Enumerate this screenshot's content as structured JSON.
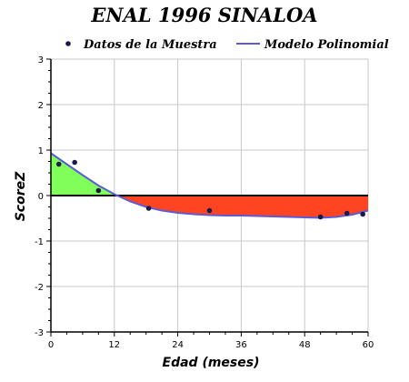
{
  "chart_data": {
    "type": "line",
    "title": "ENAL 1996 SINALOA",
    "xlabel": "Edad (meses)",
    "ylabel": "ScoreZ",
    "xlim": [
      0,
      60
    ],
    "ylim": [
      -3,
      3
    ],
    "x_ticks": [
      "0",
      "12",
      "24",
      "36",
      "48",
      "60"
    ],
    "y_ticks": [
      "3",
      "2",
      "1",
      "0",
      "-1",
      "-2",
      "-3"
    ],
    "grid": true,
    "legend": [
      "Datos de la Muestra",
      "Modelo Polinomial"
    ],
    "legend_placement": "top",
    "series": [
      {
        "name": "Datos de la Muestra",
        "kind": "scatter",
        "color": "#1a1a4a",
        "points": [
          {
            "x": 1.5,
            "y": 0.69
          },
          {
            "x": 4.5,
            "y": 0.73
          },
          {
            "x": 9,
            "y": 0.11
          },
          {
            "x": 18.5,
            "y": -0.28
          },
          {
            "x": 30,
            "y": -0.33
          },
          {
            "x": 51,
            "y": -0.47
          },
          {
            "x": 56,
            "y": -0.39
          },
          {
            "x": 59,
            "y": -0.41
          }
        ]
      },
      {
        "name": "Modelo Polinomial",
        "kind": "line",
        "color": "#5b5bd6",
        "points": [
          {
            "x": 0,
            "y": 0.93
          },
          {
            "x": 3,
            "y": 0.69
          },
          {
            "x": 6,
            "y": 0.45
          },
          {
            "x": 9,
            "y": 0.22
          },
          {
            "x": 12,
            "y": 0.03
          },
          {
            "x": 15,
            "y": -0.13
          },
          {
            "x": 18,
            "y": -0.25
          },
          {
            "x": 21,
            "y": -0.33
          },
          {
            "x": 24,
            "y": -0.38
          },
          {
            "x": 27,
            "y": -0.41
          },
          {
            "x": 30,
            "y": -0.43
          },
          {
            "x": 33,
            "y": -0.44
          },
          {
            "x": 36,
            "y": -0.44
          },
          {
            "x": 39,
            "y": -0.45
          },
          {
            "x": 42,
            "y": -0.46
          },
          {
            "x": 45,
            "y": -0.47
          },
          {
            "x": 48,
            "y": -0.48
          },
          {
            "x": 51,
            "y": -0.49
          },
          {
            "x": 54,
            "y": -0.47
          },
          {
            "x": 57,
            "y": -0.42
          },
          {
            "x": 60,
            "y": -0.33
          }
        ]
      }
    ],
    "fill_colors": {
      "positive": "#80ff5a",
      "negative": "#ff4422"
    }
  }
}
